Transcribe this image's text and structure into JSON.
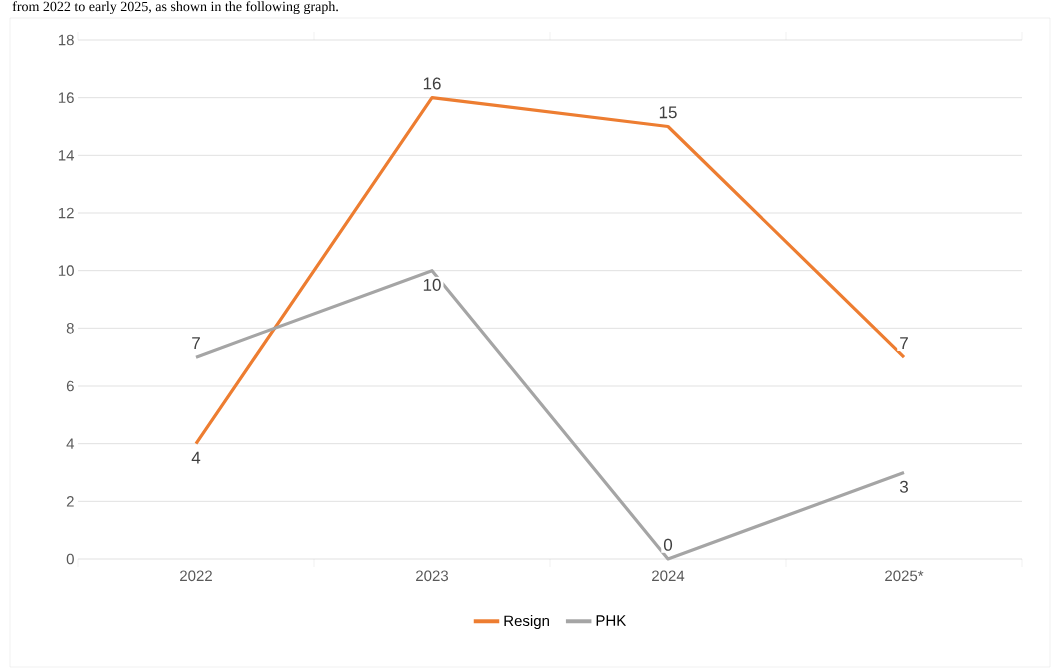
{
  "chart_data": {
    "type": "line",
    "annotations": [
      "from 2022 to early 2025, as shown in the following graph."
    ],
    "categories": [
      "2022",
      "2023",
      "2024",
      "2025*"
    ],
    "series": [
      {
        "name": "Resign",
        "color": "#ed7d31",
        "values": [
          4,
          16,
          15,
          7
        ]
      },
      {
        "name": "PHK",
        "color": "#a5a5a5",
        "values": [
          7,
          10,
          0,
          3
        ]
      }
    ],
    "ylim": [
      0,
      18
    ],
    "yticks": [
      0,
      2,
      4,
      6,
      8,
      10,
      12,
      14,
      16,
      18
    ],
    "grid": "y",
    "legend": "bottom",
    "data_labels": true,
    "marker": "none",
    "line_style": "solid"
  }
}
